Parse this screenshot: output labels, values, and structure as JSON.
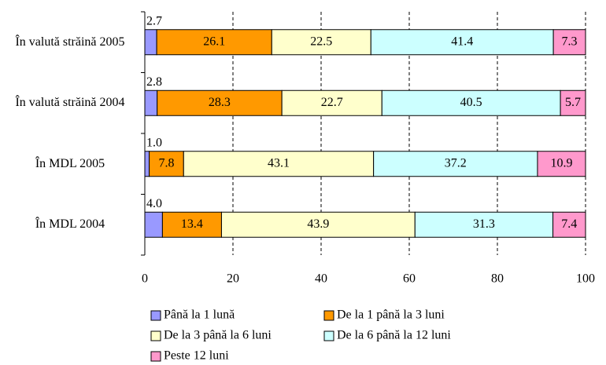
{
  "chart_data": {
    "type": "stacked-barh",
    "categories": [
      "În valută străină 2005",
      "În valută străină 2004",
      "În MDL 2005",
      "În MDL 2004"
    ],
    "series": [
      {
        "name": "Până la 1 lună",
        "color": "#9999ff",
        "values": [
          2.7,
          2.8,
          1.0,
          4.0
        ],
        "value_labels": [
          "2.7",
          "2.8",
          "1.0",
          "4.0"
        ]
      },
      {
        "name": "De la 1 până la 3 luni",
        "color": "#ff9900",
        "values": [
          26.1,
          28.3,
          7.8,
          13.4
        ],
        "value_labels": [
          "26.1",
          "28.3",
          "7.8",
          "13.4"
        ]
      },
      {
        "name": "De la 3 până la 6 luni",
        "color": "#ffffcc",
        "values": [
          22.5,
          22.7,
          43.1,
          43.9
        ],
        "value_labels": [
          "22.5",
          "22.7",
          "43.1",
          "43.9"
        ]
      },
      {
        "name": "De la 6 până la 12 luni",
        "color": "#ccffff",
        "values": [
          41.4,
          40.5,
          37.2,
          31.3
        ],
        "value_labels": [
          "41.4",
          "40.5",
          "37.2",
          "31.3"
        ]
      },
      {
        "name": "Peste 12 luni",
        "color": "#ff99cc",
        "values": [
          7.3,
          5.7,
          10.9,
          7.4
        ],
        "value_labels": [
          "7.3",
          "5.7",
          "10.9",
          "7.4"
        ]
      }
    ],
    "xlim": [
      0,
      100
    ],
    "xticks": [
      0,
      20,
      40,
      60,
      80,
      100
    ],
    "grid": true
  }
}
